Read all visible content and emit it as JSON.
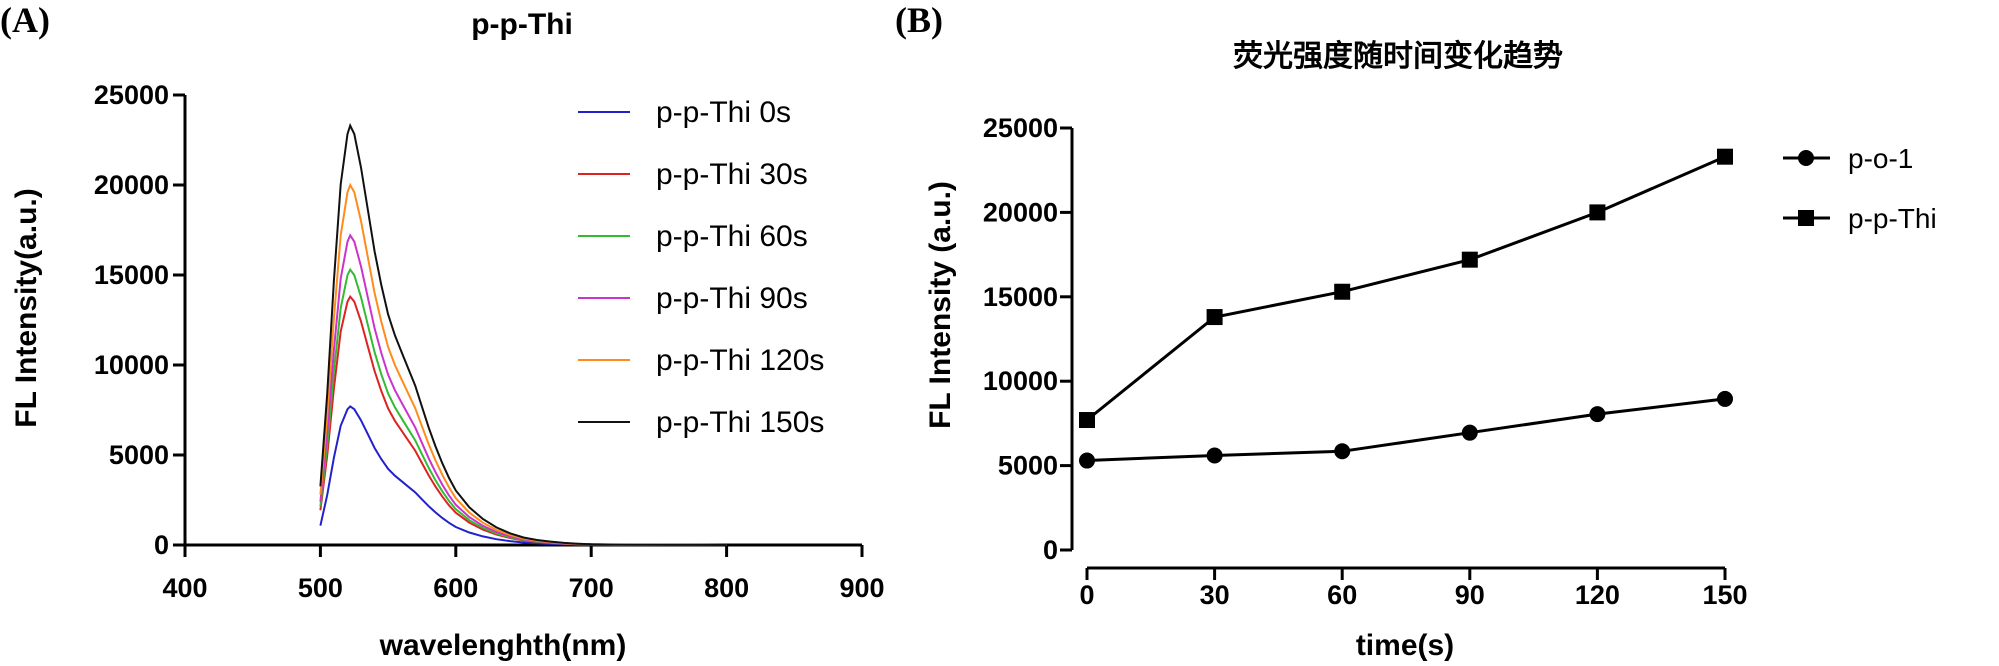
{
  "chart_data": [
    {
      "panel_label": "(A)",
      "type": "line",
      "title": "p-p-Thi",
      "xlabel": "wavelenghth(nm)",
      "ylabel": "FL Intensity(a.u.)",
      "xlim": [
        400,
        900
      ],
      "ylim": [
        0,
        25000
      ],
      "xticks": [
        "400",
        "500",
        "600",
        "700",
        "800",
        "900"
      ],
      "yticks": [
        "0",
        "5000",
        "10000",
        "15000",
        "20000",
        "25000"
      ],
      "grid": false,
      "legend_position": "top-right",
      "x": [
        500,
        505,
        510,
        515,
        520,
        522,
        525,
        530,
        535,
        540,
        545,
        550,
        555,
        560,
        565,
        570,
        575,
        580,
        585,
        590,
        595,
        600,
        610,
        620,
        630,
        640,
        650,
        660,
        670,
        680,
        690,
        700,
        720,
        740,
        760,
        780,
        800
      ],
      "base_shape": [
        0.14,
        0.36,
        0.63,
        0.86,
        0.98,
        1.0,
        0.98,
        0.9,
        0.8,
        0.7,
        0.62,
        0.55,
        0.5,
        0.46,
        0.42,
        0.38,
        0.33,
        0.28,
        0.235,
        0.195,
        0.16,
        0.13,
        0.09,
        0.062,
        0.042,
        0.028,
        0.018,
        0.012,
        0.008,
        0.005,
        0.003,
        0.002,
        0.001,
        0.0005,
        0.0003,
        0.0002,
        0.0001
      ],
      "series": [
        {
          "name": "p-p-Thi 0s",
          "color": "#2222cc",
          "peak": 7700
        },
        {
          "name": "p-p-Thi 30s",
          "color": "#dd2222",
          "peak": 13800
        },
        {
          "name": "p-p-Thi 60s",
          "color": "#33bb33",
          "peak": 15300
        },
        {
          "name": "p-p-Thi 90s",
          "color": "#cc33cc",
          "peak": 17200
        },
        {
          "name": "p-p-Thi 120s",
          "color": "#ff8c1a",
          "peak": 20000
        },
        {
          "name": "p-p-Thi 150s",
          "color": "#111111",
          "peak": 23300
        }
      ]
    },
    {
      "panel_label": "(B)",
      "type": "line",
      "title": "荧光强度随时间变化趋势",
      "xlabel": "time(s)",
      "ylabel": "FL  Intensity  (a.u.)",
      "xlim": [
        0,
        150
      ],
      "ylim": [
        0,
        25000
      ],
      "xticks": [
        "0",
        "30",
        "60",
        "90",
        "120",
        "150"
      ],
      "yticks": [
        "0",
        "5000",
        "10000",
        "15000",
        "20000",
        "25000"
      ],
      "grid": false,
      "legend_position": "top-right",
      "x": [
        0,
        30,
        60,
        90,
        120,
        150
      ],
      "series": [
        {
          "name": "p-o-1",
          "marker": "circle",
          "color": "#000000",
          "values": [
            5300,
            5600,
            5850,
            6950,
            8050,
            8950
          ]
        },
        {
          "name": "p-p-Thi",
          "marker": "square",
          "color": "#000000",
          "values": [
            7700,
            13800,
            15300,
            17200,
            20000,
            23300
          ]
        }
      ]
    }
  ]
}
